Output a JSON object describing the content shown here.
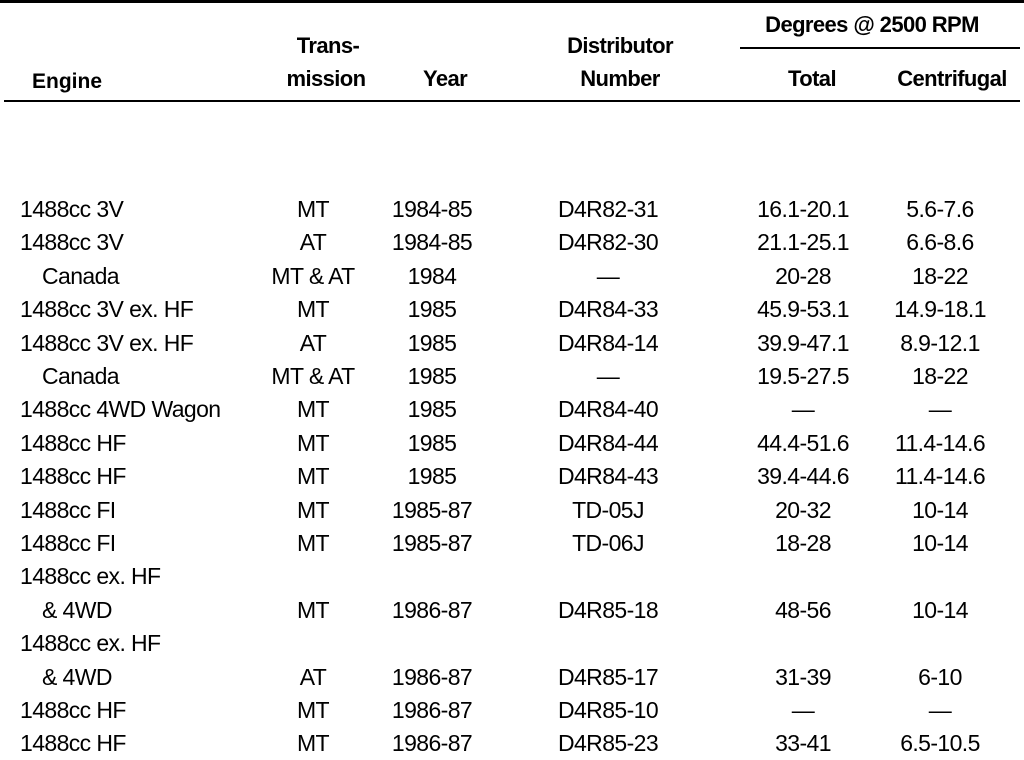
{
  "header": {
    "engine": "Engine",
    "transmission": [
      "Trans-",
      "mission"
    ],
    "year": "Year",
    "distributor": [
      "Distributor",
      "Number"
    ],
    "degrees_group": "Degrees @ 2500 RPM",
    "total": "Total",
    "centrifugal": "Centrifugal"
  },
  "table": {
    "rows": [
      [
        [
          "1488cc 3V"
        ],
        "MT",
        "1984-85",
        "D4R82-31",
        "16.1-20.1",
        "5.6-7.6"
      ],
      [
        [
          "1488cc 3V"
        ],
        "AT",
        "1984-85",
        "D4R82-30",
        "21.1-25.1",
        "6.6-8.6"
      ],
      [
        [
          "Canada"
        ],
        "MT & AT",
        "1984",
        "—",
        "20-28",
        "18-22"
      ],
      [
        [
          "1488cc 3V ex. HF"
        ],
        "MT",
        "1985",
        "D4R84-33",
        "45.9-53.1",
        "14.9-18.1"
      ],
      [
        [
          "1488cc 3V ex. HF"
        ],
        "AT",
        "1985",
        "D4R84-14",
        "39.9-47.1",
        "8.9-12.1"
      ],
      [
        [
          "Canada"
        ],
        "MT & AT",
        "1985",
        "—",
        "19.5-27.5",
        "18-22"
      ],
      [
        [
          "1488cc 4WD Wagon"
        ],
        "MT",
        "1985",
        "D4R84-40",
        "—",
        "—"
      ],
      [
        [
          "1488cc HF"
        ],
        "MT",
        "1985",
        "D4R84-44",
        "44.4-51.6",
        "11.4-14.6"
      ],
      [
        [
          "1488cc HF"
        ],
        "MT",
        "1985",
        "D4R84-43",
        "39.4-44.6",
        "11.4-14.6"
      ],
      [
        [
          "1488cc FI"
        ],
        "MT",
        "1985-87",
        "TD-05J",
        "20-32",
        "10-14"
      ],
      [
        [
          "1488cc FI"
        ],
        "MT",
        "1985-87",
        "TD-06J",
        "18-28",
        "10-14"
      ],
      [
        [
          "1488cc ex. HF",
          "& 4WD"
        ],
        "MT",
        "1986-87",
        "D4R85-18",
        "48-56",
        "10-14"
      ],
      [
        [
          "1488cc ex. HF",
          "& 4WD"
        ],
        "AT",
        "1986-87",
        "D4R85-17",
        "31-39",
        "6-10"
      ],
      [
        [
          "1488cc HF"
        ],
        "MT",
        "1986-87",
        "D4R85-10",
        "—",
        "—"
      ],
      [
        [
          "1488cc HF"
        ],
        "MT",
        "1986-87",
        "D4R85-23",
        "33-41",
        "6.5-10.5"
      ]
    ]
  }
}
